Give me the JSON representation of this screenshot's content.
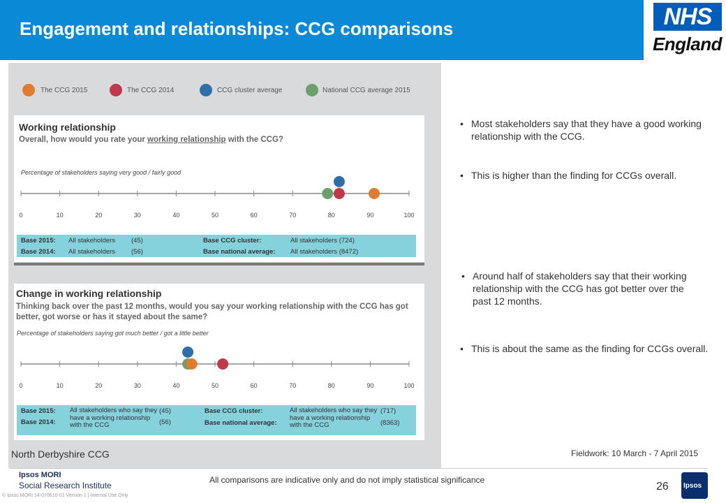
{
  "header": {
    "title": "Engagement and relationships: CCG comparisons"
  },
  "logo": {
    "nhs": "NHS",
    "england": "England"
  },
  "legend": [
    {
      "label": "The CCG 2015",
      "color": "#e07b30"
    },
    {
      "label": "The CCG 2014",
      "color": "#c0394a"
    },
    {
      "label": "CCG cluster average",
      "color": "#2f6fa8"
    },
    {
      "label": "National CCG average 2015",
      "color": "#6aa06a"
    }
  ],
  "section1": {
    "title": "Working relationship",
    "question_pre": "Overall, how would you rate your ",
    "question_link": "working relationship",
    "question_post": " with the CCG?",
    "note": "Percentage of stakeholders saying very good / fairly good",
    "base": {
      "label_2015": "Base 2015:",
      "group_2015": "All stakeholders",
      "n_2015": "(45)",
      "label_2014": "Base 2014:",
      "group_2014": "All stakeholders",
      "n_2014": "(56)",
      "label_cluster": "Base CCG cluster:",
      "cluster": "All stakeholders (724)",
      "label_national": "Base national average:",
      "national": "All stakeholders (8472)"
    }
  },
  "section2": {
    "title": "Change in working relationship",
    "question": "Thinking back over the past 12 months, would you say your working relationship with the CCG has got better, got worse or has it stayed about the same?",
    "note": "Percentage of stakeholders saying got much better / got a little better",
    "base": {
      "label_2015": "Base 2015:",
      "label_2014": "Base 2014:",
      "group": "All stakeholders who say they have a working relationship with the CCG",
      "n_2015": "(45)",
      "n_2014": "(56)",
      "label_cluster": "Base CCG cluster:",
      "label_national": "Base national average:",
      "group_right": "All stakeholders who say they have a working relationship with the CCG",
      "n_cluster": "(717)",
      "n_national": "(8363)"
    }
  },
  "chart_data": [
    {
      "type": "scatter",
      "title": "Working relationship",
      "xlim": [
        0,
        100
      ],
      "x_ticks": [
        "0",
        "10",
        "20",
        "30",
        "40",
        "50",
        "60",
        "70",
        "80",
        "90",
        "100"
      ],
      "series": [
        {
          "name": "The CCG 2015",
          "values": [
            91
          ]
        },
        {
          "name": "The CCG 2014",
          "values": [
            82
          ]
        },
        {
          "name": "CCG cluster average",
          "values": [
            82
          ]
        },
        {
          "name": "National CCG average 2015",
          "values": [
            79
          ]
        }
      ]
    },
    {
      "type": "scatter",
      "title": "Change in working relationship",
      "xlim": [
        0,
        100
      ],
      "x_ticks": [
        "0",
        "10",
        "20",
        "30",
        "40",
        "50",
        "60",
        "70",
        "80",
        "90",
        "100"
      ],
      "series": [
        {
          "name": "The CCG 2015",
          "values": [
            44
          ]
        },
        {
          "name": "The CCG 2014",
          "values": [
            52
          ]
        },
        {
          "name": "CCG cluster average",
          "values": [
            43
          ]
        },
        {
          "name": "National CCG average 2015",
          "values": [
            43
          ]
        }
      ]
    }
  ],
  "bullets": {
    "b1": "Most stakeholders say that they have a good working relationship with the CCG.",
    "b2": "This is higher than the finding for CCGs overall.",
    "b3": "Around half of stakeholders say that their working relationship with the CCG has got better over the past 12 months.",
    "b4": "This is about the same as the finding for CCGs overall."
  },
  "footer": {
    "ccg_name": "North Derbyshire CCG",
    "fieldwork": "Fieldwork: 10 March - 7 April 2015",
    "disclaimer": "All comparisons are indicative only and do not imply statistical significance",
    "page": "26",
    "ipsos_title": "Ipsos MORI",
    "ipsos_sub": "Social Research Institute",
    "legal": "© Ipsos MORI    14-070610-01  Version 1 | Internal Use Only",
    "ipsos_badge": "Ipsos"
  }
}
